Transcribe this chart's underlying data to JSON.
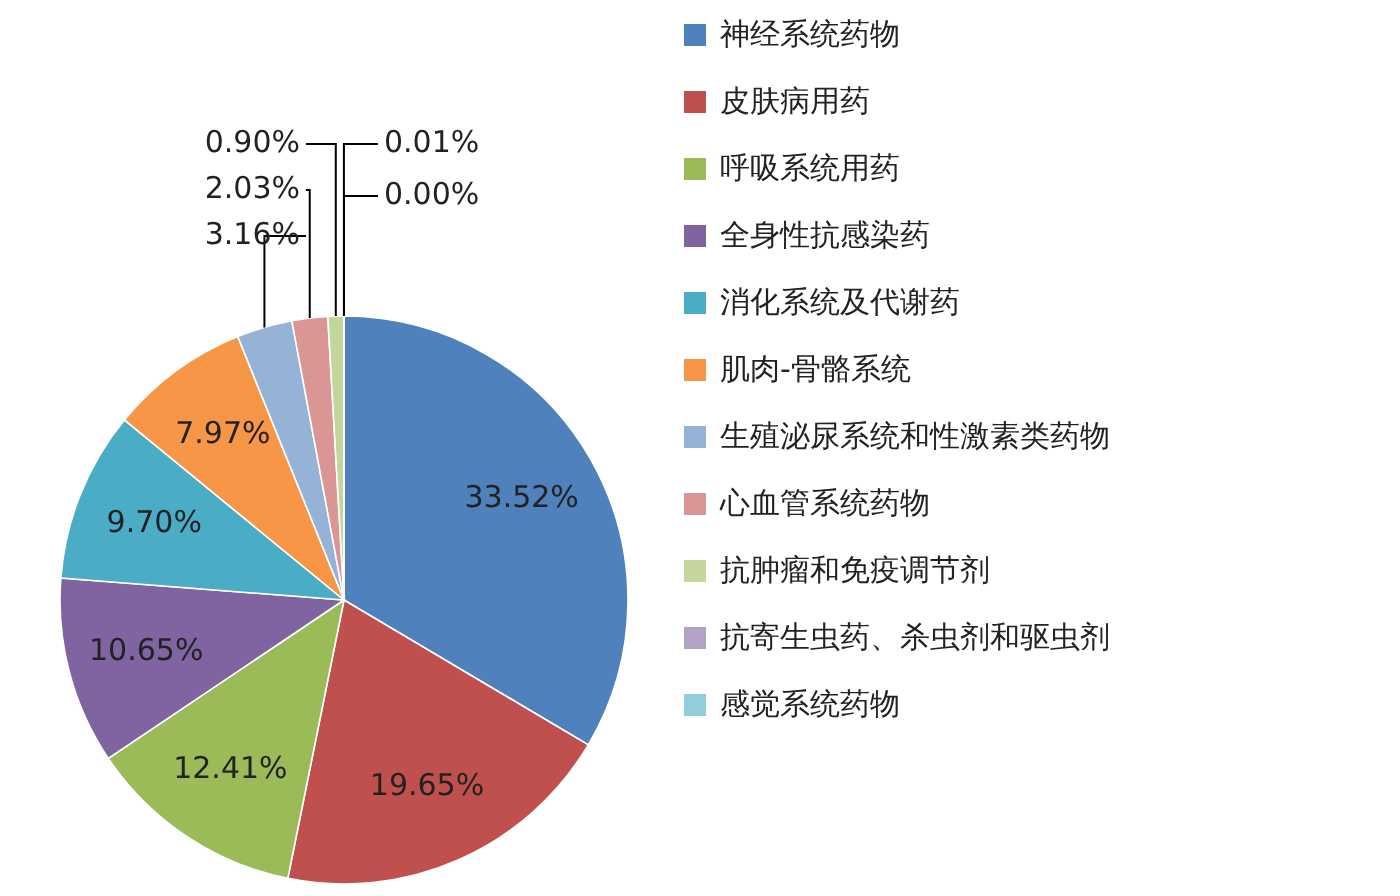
{
  "chart_data": {
    "type": "pie",
    "categories": [
      "神经系统药物",
      "皮肤病用药",
      "呼吸系统用药",
      "全身性抗感染药",
      "消化系统及代谢药",
      "肌肉-骨骼系统",
      "生殖泌尿系统和性激素类药物",
      "心血管系统药物",
      "抗肿瘤和免疫调节剂",
      "抗寄生虫药、杀虫剂和驱虫剂",
      "感觉系统药物"
    ],
    "values": [
      33.52,
      19.65,
      12.41,
      10.65,
      9.7,
      7.97,
      3.16,
      2.03,
      0.9,
      0.01,
      0.0
    ],
    "value_labels": [
      "33.52%",
      "19.65%",
      "12.41%",
      "10.65%",
      "9.70%",
      "7.97%",
      "3.16%",
      "2.03%",
      "0.90%",
      "0.01%",
      "0.00%"
    ],
    "colors": [
      "#4f81bd",
      "#c0504d",
      "#9bbb59",
      "#8064a2",
      "#4bacc6",
      "#f79646",
      "#95b3d7",
      "#da9694",
      "#c3d69b",
      "#b3a2c7",
      "#92cddc"
    ],
    "legend": "right"
  }
}
